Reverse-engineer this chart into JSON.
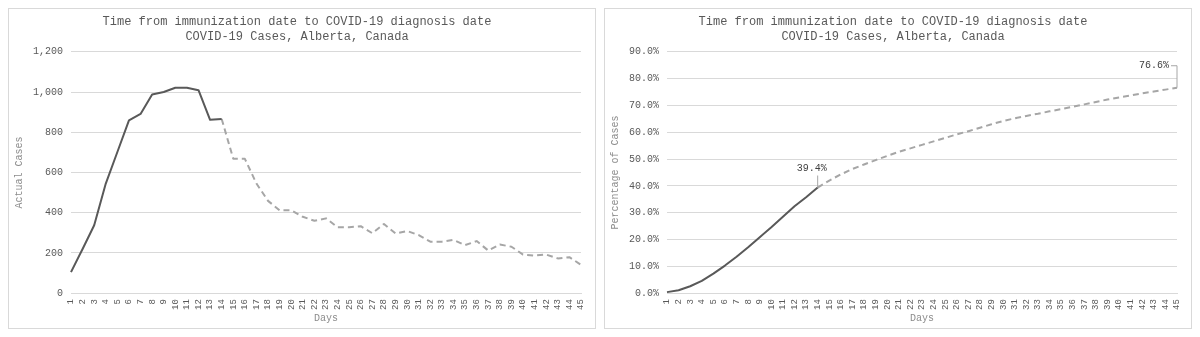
{
  "chart_data": [
    {
      "type": "line",
      "title": "Time from immunization date to COVID-19 diagnosis date",
      "subtitle": "COVID-19 Cases, Alberta, Canada",
      "xlabel": "Days",
      "ylabel": "Actual Cases",
      "categories": [
        "1",
        "2",
        "3",
        "4",
        "5",
        "6",
        "7",
        "8",
        "9",
        "10",
        "11",
        "12",
        "13",
        "14",
        "15",
        "16",
        "17",
        "18",
        "19",
        "20",
        "21",
        "22",
        "23",
        "24",
        "25",
        "26",
        "27",
        "28",
        "29",
        "30",
        "31",
        "32",
        "33",
        "34",
        "35",
        "36",
        "37",
        "38",
        "39",
        "40",
        "41",
        "42",
        "43",
        "44",
        "45"
      ],
      "series": [
        {
          "color": "#595959",
          "line_style": "solid",
          "values": [
            105,
            220,
            338,
            545,
            702,
            859,
            891,
            988,
            1000,
            1021,
            1021,
            1009,
            862,
            866,
            null,
            null,
            null,
            null,
            null,
            null,
            null,
            null,
            null,
            null,
            null,
            null,
            null,
            null,
            null,
            null,
            null,
            null,
            null,
            null,
            null,
            null,
            null,
            null,
            null,
            null,
            null,
            null,
            null,
            null,
            null
          ]
        },
        {
          "color": "#a6a6a6",
          "line_style": "dashed",
          "values": [
            null,
            null,
            null,
            null,
            null,
            null,
            null,
            null,
            null,
            null,
            null,
            null,
            null,
            866,
            668,
            668,
            545,
            459,
            412,
            412,
            380,
            360,
            372,
            328,
            328,
            333,
            298,
            344,
            297,
            309,
            289,
            256,
            256,
            265,
            239,
            259,
            212,
            242,
            231,
            192,
            187,
            192,
            173,
            179,
            141
          ]
        }
      ],
      "ylim": [
        0,
        1200
      ],
      "yticks": [
        0,
        200,
        400,
        600,
        800,
        {
          "value": 1000,
          "label": "1,000"
        },
        {
          "value": 1200,
          "label": "1,200"
        }
      ],
      "grid": "y",
      "legend": false,
      "marker": "none"
    },
    {
      "type": "line",
      "title": "Time from immunization date to COVID-19 diagnosis date",
      "subtitle": "COVID-19 Cases, Alberta, Canada",
      "xlabel": "Days",
      "ylabel": "Percentage of Cases",
      "categories": [
        "1",
        "2",
        "3",
        "4",
        "5",
        "6",
        "7",
        "8",
        "9",
        "10",
        "11",
        "12",
        "13",
        "14",
        "15",
        "16",
        "17",
        "18",
        "19",
        "20",
        "21",
        "22",
        "23",
        "24",
        "25",
        "26",
        "27",
        "28",
        "29",
        "30",
        "31",
        "32",
        "33",
        "34",
        "35",
        "36",
        "37",
        "38",
        "39",
        "40",
        "41",
        "42",
        "43",
        "44",
        "45"
      ],
      "series": [
        {
          "color": "#595959",
          "line_style": "solid",
          "values": [
            0.4,
            1.1,
            2.6,
            4.6,
            7.3,
            10.3,
            13.6,
            17.1,
            20.9,
            24.6,
            28.5,
            32.4,
            35.8,
            39.4,
            null,
            null,
            null,
            null,
            null,
            null,
            null,
            null,
            null,
            null,
            null,
            null,
            null,
            null,
            null,
            null,
            null,
            null,
            null,
            null,
            null,
            null,
            null,
            null,
            null,
            null,
            null,
            null,
            null,
            null,
            null
          ],
          "value_labels": [
            null,
            null,
            null,
            null,
            null,
            null,
            null,
            null,
            null,
            null,
            null,
            null,
            null,
            "39.4%",
            null,
            null,
            null,
            null,
            null,
            null,
            null,
            null,
            null,
            null,
            null,
            null,
            null,
            null,
            null,
            null,
            null,
            null,
            null,
            null,
            null,
            null,
            null,
            null,
            null,
            null,
            null,
            null,
            null,
            null,
            null
          ]
        },
        {
          "color": "#a6a6a6",
          "line_style": "dashed",
          "values": [
            null,
            null,
            null,
            null,
            null,
            null,
            null,
            null,
            null,
            null,
            null,
            null,
            null,
            39.4,
            42.0,
            44.3,
            46.3,
            48.0,
            49.6,
            51.2,
            52.7,
            54.0,
            55.3,
            56.6,
            57.9,
            59.2,
            60.4,
            61.7,
            63.0,
            64.2,
            65.2,
            66.1,
            66.9,
            67.8,
            68.6,
            69.5,
            70.4,
            71.3,
            72.2,
            73.0,
            73.7,
            74.5,
            75.2,
            75.9,
            76.6
          ],
          "value_labels": [
            null,
            null,
            null,
            null,
            null,
            null,
            null,
            null,
            null,
            null,
            null,
            null,
            null,
            null,
            null,
            null,
            null,
            null,
            null,
            null,
            null,
            null,
            null,
            null,
            null,
            null,
            null,
            null,
            null,
            null,
            null,
            null,
            null,
            null,
            null,
            null,
            null,
            null,
            null,
            null,
            null,
            null,
            null,
            null,
            "76.6%"
          ]
        }
      ],
      "ylim": [
        0,
        90
      ],
      "yticks": [
        {
          "value": 0,
          "label": "0.0%"
        },
        {
          "value": 10,
          "label": "10.0%"
        },
        {
          "value": 20,
          "label": "20.0%"
        },
        {
          "value": 30,
          "label": "30.0%"
        },
        {
          "value": 40,
          "label": "40.0%"
        },
        {
          "value": 50,
          "label": "50.0%"
        },
        {
          "value": 60,
          "label": "60.0%"
        },
        {
          "value": 70,
          "label": "70.0%"
        },
        {
          "value": 80,
          "label": "80.0%"
        },
        {
          "value": 90,
          "label": "90.0%"
        }
      ],
      "grid": "y",
      "legend": false,
      "marker": "none"
    }
  ]
}
